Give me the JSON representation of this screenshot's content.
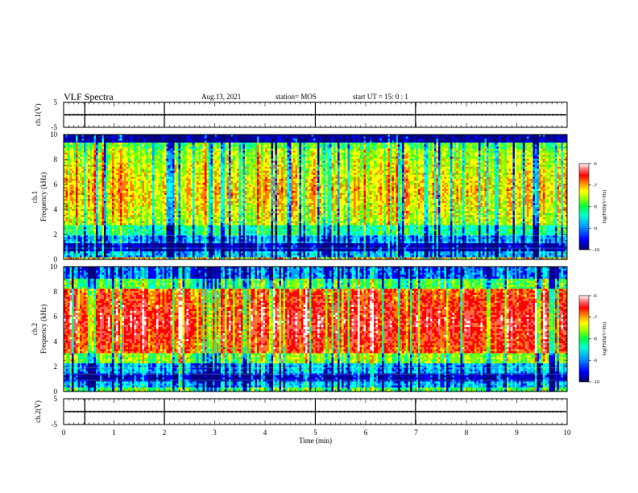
{
  "header": {
    "title": "VLF Spectra",
    "date": "Aug.13, 2021",
    "station": "station= MOS",
    "start_ut": "start  UT =   15: 0   : 1"
  },
  "chart_data": {
    "type": "heatmap",
    "xlabel": "Time  (min)",
    "xlim": [
      0,
      10
    ],
    "xticks": [
      "0",
      "1",
      "2",
      "3",
      "4",
      "5",
      "6",
      "7",
      "8",
      "9",
      "10"
    ],
    "panels": [
      {
        "id": "ch1-waveform",
        "ylabel": "ch.1(V)",
        "ylim": [
          -5,
          5
        ],
        "yticks": [
          "5",
          "-5"
        ],
        "trace_level": 0
      },
      {
        "id": "ch1-spectrogram",
        "ylabel_line1": "ch.1",
        "ylabel_line2": "Frequency (kHz)",
        "ylim": [
          0,
          10
        ],
        "yticks": [
          "0",
          "2",
          "4",
          "6",
          "8",
          "10"
        ],
        "colorbar": {
          "label": "log(PSD)(V²/Hz)",
          "range": [
            -10,
            -6
          ],
          "ticks": [
            "-6",
            "-7",
            "-8",
            "-9",
            "-10"
          ]
        },
        "description_profile": "strong broadband emission 2-9 kHz with vertical spherics, dark band 1-2 kHz"
      },
      {
        "id": "ch2-spectrogram",
        "ylabel_line1": "ch.2",
        "ylabel_line2": "Frequency (kHz)",
        "ylim": [
          0,
          10
        ],
        "yticks": [
          "0",
          "2",
          "4",
          "6",
          "8",
          "10"
        ],
        "colorbar": {
          "label": "log(PSD)(V²/Hz)",
          "range": [
            -10,
            -6
          ],
          "ticks": [
            "-6",
            "-7",
            "-8",
            "-9",
            "-10"
          ]
        }
      },
      {
        "id": "ch2-waveform",
        "ylabel": "ch.2(V)",
        "ylim": [
          -5,
          5
        ],
        "yticks": [
          "5",
          "-5"
        ],
        "trace_level": 0
      }
    ],
    "colormap": [
      "#000080",
      "#0000ff",
      "#00a0ff",
      "#00ffff",
      "#00ff80",
      "#80ff00",
      "#ffff00",
      "#ff8000",
      "#ff0000",
      "#ff6060",
      "#ffffff"
    ]
  }
}
